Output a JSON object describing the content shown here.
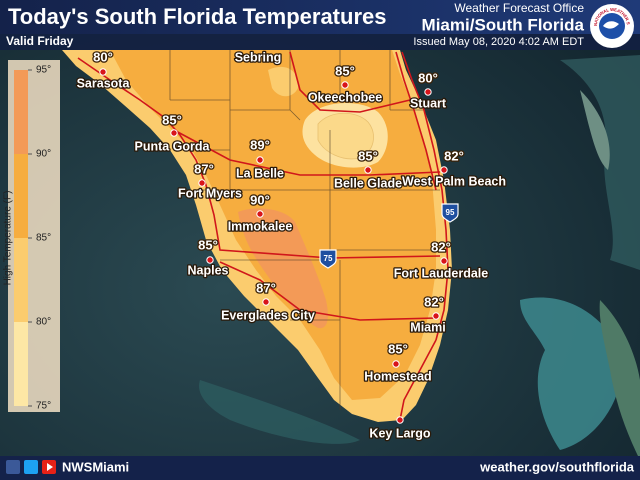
{
  "header": {
    "title": "Today's South Florida Temperatures",
    "valid": "Valid Friday",
    "office": "Weather Forecast Office",
    "location": "Miami/South Florida",
    "issued": "Issued May 08, 2020 4:02 AM EDT",
    "logo": "NATIONAL WEATHER SERVICE"
  },
  "legend": {
    "label": "High Temperature (F)",
    "ticks": [
      "95°",
      "90°",
      "85°",
      "80°",
      "75°"
    ]
  },
  "cities": [
    {
      "name": "Sarasota",
      "temp": "80°"
    },
    {
      "name": "Sebring"
    },
    {
      "name": "Okeechobee",
      "temp": "85°"
    },
    {
      "name": "Stuart",
      "temp": "80°"
    },
    {
      "name": "Punta Gorda",
      "temp": "85°"
    },
    {
      "name": "La Belle",
      "temp": "89°"
    },
    {
      "name": "Belle Glade",
      "temp": "85°"
    },
    {
      "name": "West Palm Beach",
      "temp": "82°"
    },
    {
      "name": "Fort Myers",
      "temp": "87°"
    },
    {
      "name": "Immokalee",
      "temp": "90°"
    },
    {
      "name": "Naples",
      "temp": "85°"
    },
    {
      "name": "Fort Lauderdale",
      "temp": "82°"
    },
    {
      "name": "Everglades City",
      "temp": "87°"
    },
    {
      "name": "Miami",
      "temp": "82°"
    },
    {
      "name": "Homestead",
      "temp": "85°"
    },
    {
      "name": "Key Largo"
    }
  ],
  "interstates": [
    "95",
    "75"
  ],
  "footer": {
    "social": "NWSMiami",
    "url": "weather.gov/southflorida"
  }
}
